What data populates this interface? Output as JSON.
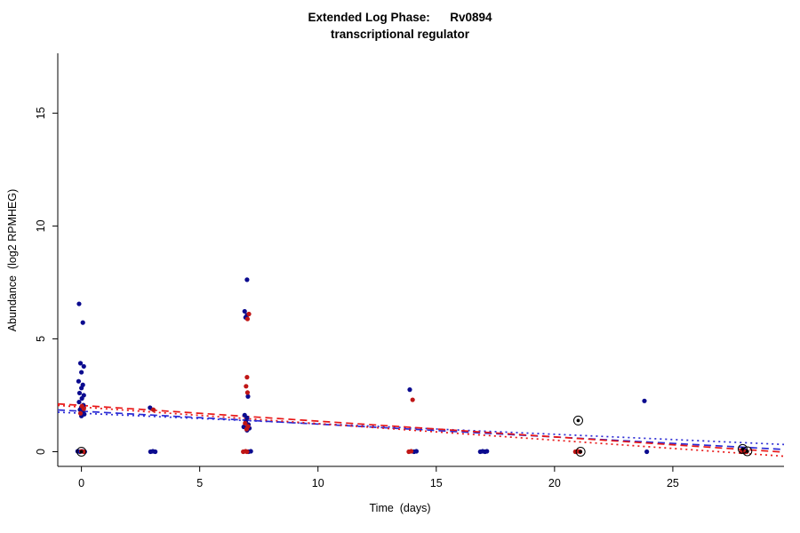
{
  "chart_data": {
    "type": "scatter",
    "title": "Extended Log Phase:      Rv0894",
    "subtitle": "transcriptional regulator",
    "xlabel": "Time  (days)",
    "ylabel": "Abundance  (log2 RPMHEG)",
    "xlim": [
      -1.0,
      29.7
    ],
    "ylim": [
      -0.65,
      17.65
    ],
    "xticks": [
      0,
      5,
      10,
      15,
      20,
      25
    ],
    "yticks": [
      0,
      5,
      10,
      15
    ],
    "grid": false,
    "legend": "none",
    "point_radius": 2.6,
    "series": [
      {
        "name": "condition-blue",
        "color": "#0b0b8f",
        "points": [
          [
            -0.1,
            6.55
          ],
          [
            0.06,
            5.72
          ],
          [
            -0.04,
            3.92
          ],
          [
            0.1,
            3.78
          ],
          [
            0.0,
            3.52
          ],
          [
            -0.12,
            3.12
          ],
          [
            0.06,
            2.96
          ],
          [
            0.0,
            2.82
          ],
          [
            -0.08,
            2.6
          ],
          [
            0.1,
            2.5
          ],
          [
            0.02,
            2.36
          ],
          [
            -0.1,
            2.2
          ],
          [
            0.08,
            2.06
          ],
          [
            0.0,
            1.96
          ],
          [
            -0.06,
            1.86
          ],
          [
            0.05,
            1.76
          ],
          [
            0.12,
            1.66
          ],
          [
            0.0,
            1.58
          ],
          [
            -0.16,
            0.02
          ],
          [
            -0.06,
            0.0
          ],
          [
            0.04,
            0.02
          ],
          [
            0.14,
            0.0
          ],
          [
            2.9,
            1.95
          ],
          [
            2.92,
            0.0
          ],
          [
            3.02,
            0.02
          ],
          [
            3.12,
            0.0
          ],
          [
            7.0,
            7.62
          ],
          [
            6.9,
            6.22
          ],
          [
            7.0,
            6.05
          ],
          [
            6.94,
            5.95
          ],
          [
            7.04,
            2.45
          ],
          [
            6.9,
            1.62
          ],
          [
            7.0,
            1.5
          ],
          [
            6.95,
            1.32
          ],
          [
            7.06,
            1.2
          ],
          [
            6.86,
            1.1
          ],
          [
            7.1,
            1.04
          ],
          [
            7.0,
            0.95
          ],
          [
            7.06,
            0.0
          ],
          [
            7.16,
            0.02
          ],
          [
            13.88,
            2.75
          ],
          [
            14.06,
            0.0
          ],
          [
            14.16,
            0.02
          ],
          [
            16.86,
            0.0
          ],
          [
            16.96,
            0.02
          ],
          [
            17.06,
            0.0
          ],
          [
            17.14,
            0.02
          ],
          [
            23.8,
            2.25
          ],
          [
            23.9,
            0.0
          ],
          [
            28.05,
            0.06
          ]
        ]
      },
      {
        "name": "condition-red",
        "color": "#c01616",
        "points": [
          [
            0.02,
            2.02
          ],
          [
            0.1,
            1.9
          ],
          [
            -0.04,
            1.7
          ],
          [
            0.0,
            0.02
          ],
          [
            0.1,
            0.0
          ],
          [
            3.04,
            1.86
          ],
          [
            7.08,
            6.1
          ],
          [
            7.02,
            5.88
          ],
          [
            7.0,
            3.3
          ],
          [
            6.96,
            2.9
          ],
          [
            7.02,
            2.62
          ],
          [
            6.92,
            1.26
          ],
          [
            7.04,
            1.12
          ],
          [
            6.98,
            1.0
          ],
          [
            6.84,
            0.0
          ],
          [
            6.94,
            0.02
          ],
          [
            7.0,
            0.0
          ],
          [
            14.0,
            2.3
          ],
          [
            13.84,
            0.0
          ],
          [
            13.94,
            0.02
          ],
          [
            20.88,
            0.0
          ],
          [
            20.98,
            0.02
          ],
          [
            21.08,
            0.0
          ],
          [
            27.9,
            0.0
          ],
          [
            28.0,
            0.02
          ],
          [
            28.12,
            0.0
          ]
        ]
      }
    ],
    "outlined_points": {
      "name": "flagged-points",
      "stroke": "#000000",
      "dot": "#000000",
      "points": [
        [
          0.0,
          0.0
        ],
        [
          21.0,
          1.38
        ],
        [
          21.1,
          0.0
        ],
        [
          27.95,
          0.12
        ],
        [
          28.15,
          0.02
        ]
      ]
    },
    "trend_lines": [
      {
        "name": "blue-dashed",
        "color": "#2b2bd4",
        "dash": "dashed",
        "start": [
          -1.0,
          1.85
        ],
        "end": [
          29.7,
          0.1
        ]
      },
      {
        "name": "blue-dotted",
        "color": "#2b2bd4",
        "dash": "dotted",
        "start": [
          -1.0,
          1.75
        ],
        "end": [
          29.7,
          0.32
        ]
      },
      {
        "name": "red-dashed",
        "color": "#e81717",
        "dash": "dashed",
        "start": [
          -1.0,
          2.12
        ],
        "end": [
          29.7,
          -0.02
        ]
      },
      {
        "name": "red-dotted",
        "color": "#e81717",
        "dash": "dotted",
        "start": [
          -1.0,
          2.05
        ],
        "end": [
          29.7,
          -0.2
        ]
      }
    ]
  }
}
